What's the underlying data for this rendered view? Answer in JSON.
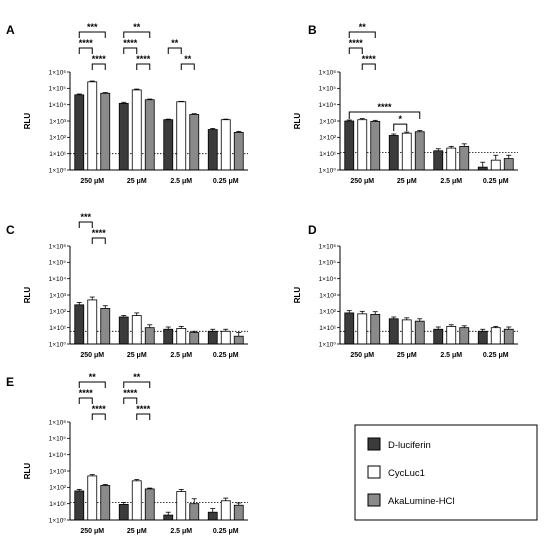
{
  "colors": {
    "D-luciferin": "#3b3b3b",
    "CycLuc1": "#ffffff",
    "AkaLumine-HCl": "#8a8a8a",
    "stroke": "#000000"
  },
  "legend": {
    "placement": "bottom-right",
    "entries": [
      "D-luciferin",
      "CycLuc1",
      "AkaLumine-HCl"
    ]
  },
  "chart_data": [
    {
      "panel": "A",
      "type": "bar",
      "ylabel": "RLU",
      "yscale": "log",
      "ylim": [
        1,
        1000000
      ],
      "yticks": [
        "1×10⁰",
        "1×10¹",
        "1×10²",
        "1×10³",
        "1×10⁴",
        "1×10⁵",
        "1×10⁶"
      ],
      "categories": [
        "250 μM",
        "25 μM",
        "2.5 μM",
        "0.25 μM"
      ],
      "dotted_line_y": 10,
      "series": [
        {
          "name": "D-luciferin",
          "values": [
            40000,
            12000,
            1200,
            300
          ],
          "errors": [
            45000,
            14000,
            1300,
            350
          ]
        },
        {
          "name": "CycLuc1",
          "values": [
            250000,
            80000,
            15000,
            1200
          ],
          "errors": [
            280000,
            90000,
            16000,
            1300
          ]
        },
        {
          "name": "AkaLumine-HCl",
          "values": [
            50000,
            20000,
            2500,
            200
          ],
          "errors": [
            55000,
            22000,
            2800,
            230
          ]
        }
      ],
      "significance": [
        {
          "label": "***",
          "cat": 0,
          "from": 0,
          "to": 2,
          "level": 3
        },
        {
          "label": "****",
          "cat": 0,
          "from": 0,
          "to": 1,
          "level": 2
        },
        {
          "label": "****",
          "cat": 0,
          "from": 1,
          "to": 2,
          "level": 1
        },
        {
          "label": "**",
          "cat": 1,
          "from": 0,
          "to": 2,
          "level": 3
        },
        {
          "label": "****",
          "cat": 1,
          "from": 0,
          "to": 1,
          "level": 2
        },
        {
          "label": "****",
          "cat": 1,
          "from": 1,
          "to": 2,
          "level": 1
        },
        {
          "label": "**",
          "cat": 2,
          "from": 0,
          "to": 1,
          "level": 2
        },
        {
          "label": "**",
          "cat": 2,
          "from": 1,
          "to": 2,
          "level": 1
        }
      ]
    },
    {
      "panel": "B",
      "type": "bar",
      "ylabel": "RLU",
      "yscale": "log",
      "ylim": [
        1,
        1000000
      ],
      "yticks": [
        "1×10⁰",
        "1×10¹",
        "1×10²",
        "1×10³",
        "1×10⁴",
        "1×10⁵",
        "1×10⁶"
      ],
      "categories": [
        "250 μM",
        "25 μM",
        "2.5 μM",
        "0.25 μM"
      ],
      "dotted_line_y": 12,
      "series": [
        {
          "name": "D-luciferin",
          "values": [
            1000,
            130,
            15,
            1.5
          ],
          "errors": [
            1150,
            160,
            20,
            3
          ]
        },
        {
          "name": "CycLuc1",
          "values": [
            1200,
            180,
            22,
            4
          ],
          "errors": [
            1400,
            210,
            28,
            8
          ]
        },
        {
          "name": "AkaLumine-HCl",
          "values": [
            950,
            220,
            28,
            5
          ],
          "errors": [
            1100,
            260,
            40,
            8
          ]
        }
      ],
      "significance": [
        {
          "label": "**",
          "cat": 0,
          "from": 0,
          "to": 2,
          "level": 3
        },
        {
          "label": "****",
          "cat": 0,
          "from": 0,
          "to": 1,
          "level": 2
        },
        {
          "label": "****",
          "cat": 0,
          "from": 1,
          "to": 2,
          "level": 1
        },
        {
          "label": "****",
          "cat": 0,
          "from": 0,
          "to": 4,
          "level": 0
        },
        {
          "label": "*",
          "cat": 1,
          "from": 0,
          "to": 1,
          "level": 0
        }
      ]
    },
    {
      "panel": "C",
      "type": "bar",
      "ylabel": "RLU",
      "yscale": "log",
      "ylim": [
        1,
        1000000
      ],
      "yticks": [
        "1×10⁰",
        "1×10¹",
        "1×10²",
        "1×10³",
        "1×10⁴",
        "1×10⁵",
        "1×10⁶"
      ],
      "categories": [
        "250 μM",
        "25 μM",
        "2.5 μM",
        "0.25 μM"
      ],
      "dotted_line_y": 6,
      "series": [
        {
          "name": "D-luciferin",
          "values": [
            250,
            45,
            8,
            6
          ],
          "errors": [
            350,
            55,
            11,
            8
          ]
        },
        {
          "name": "CycLuc1",
          "values": [
            500,
            55,
            9,
            6
          ],
          "errors": [
            750,
            80,
            12,
            8
          ]
        },
        {
          "name": "AkaLumine-HCl",
          "values": [
            150,
            10,
            5,
            3
          ],
          "errors": [
            220,
            15,
            6,
            5
          ]
        }
      ],
      "significance": [
        {
          "label": "***",
          "cat": 0,
          "from": 0,
          "to": 1,
          "level": 2
        },
        {
          "label": "****",
          "cat": 0,
          "from": 1,
          "to": 2,
          "level": 1
        }
      ]
    },
    {
      "panel": "D",
      "type": "bar",
      "ylabel": "RLU",
      "yscale": "log",
      "ylim": [
        1,
        1000000
      ],
      "yticks": [
        "1×10⁰",
        "1×10¹",
        "1×10²",
        "1×10³",
        "1×10⁴",
        "1×10⁵",
        "1×10⁶"
      ],
      "categories": [
        "250 μM",
        "25 μM",
        "2.5 μM",
        "0.25 μM"
      ],
      "dotted_line_y": 6,
      "series": [
        {
          "name": "D-luciferin",
          "values": [
            80,
            35,
            8,
            6
          ],
          "errors": [
            110,
            45,
            11,
            8
          ]
        },
        {
          "name": "CycLuc1",
          "values": [
            70,
            30,
            12,
            10
          ],
          "errors": [
            100,
            40,
            15,
            12
          ]
        },
        {
          "name": "AkaLumine-HCl",
          "values": [
            65,
            25,
            10,
            8
          ],
          "errors": [
            95,
            35,
            13,
            11
          ]
        }
      ],
      "significance": []
    },
    {
      "panel": "E",
      "type": "bar",
      "ylabel": "RLU",
      "yscale": "log",
      "ylim": [
        1,
        1000000
      ],
      "yticks": [
        "1×10⁰",
        "1×10¹",
        "1×10²",
        "1×10³",
        "1×10⁴",
        "1×10⁵",
        "1×10⁶"
      ],
      "categories": [
        "250 μM",
        "25 μM",
        "2.5 μM",
        "0.25 μM"
      ],
      "dotted_line_y": 12,
      "series": [
        {
          "name": "D-luciferin",
          "values": [
            60,
            9,
            2,
            3
          ],
          "errors": [
            75,
            12,
            3,
            5
          ]
        },
        {
          "name": "CycLuc1",
          "values": [
            500,
            250,
            55,
            15
          ],
          "errors": [
            600,
            300,
            75,
            22
          ]
        },
        {
          "name": "AkaLumine-HCl",
          "values": [
            130,
            80,
            10,
            8
          ],
          "errors": [
            150,
            90,
            20,
            11
          ]
        }
      ],
      "significance": [
        {
          "label": "**",
          "cat": 0,
          "from": 0,
          "to": 2,
          "level": 3
        },
        {
          "label": "****",
          "cat": 0,
          "from": 0,
          "to": 1,
          "level": 2
        },
        {
          "label": "****",
          "cat": 0,
          "from": 1,
          "to": 2,
          "level": 1
        },
        {
          "label": "**",
          "cat": 1,
          "from": 0,
          "to": 2,
          "level": 3
        },
        {
          "label": "****",
          "cat": 1,
          "from": 0,
          "to": 1,
          "level": 2
        },
        {
          "label": "****",
          "cat": 1,
          "from": 1,
          "to": 2,
          "level": 1
        }
      ]
    }
  ]
}
